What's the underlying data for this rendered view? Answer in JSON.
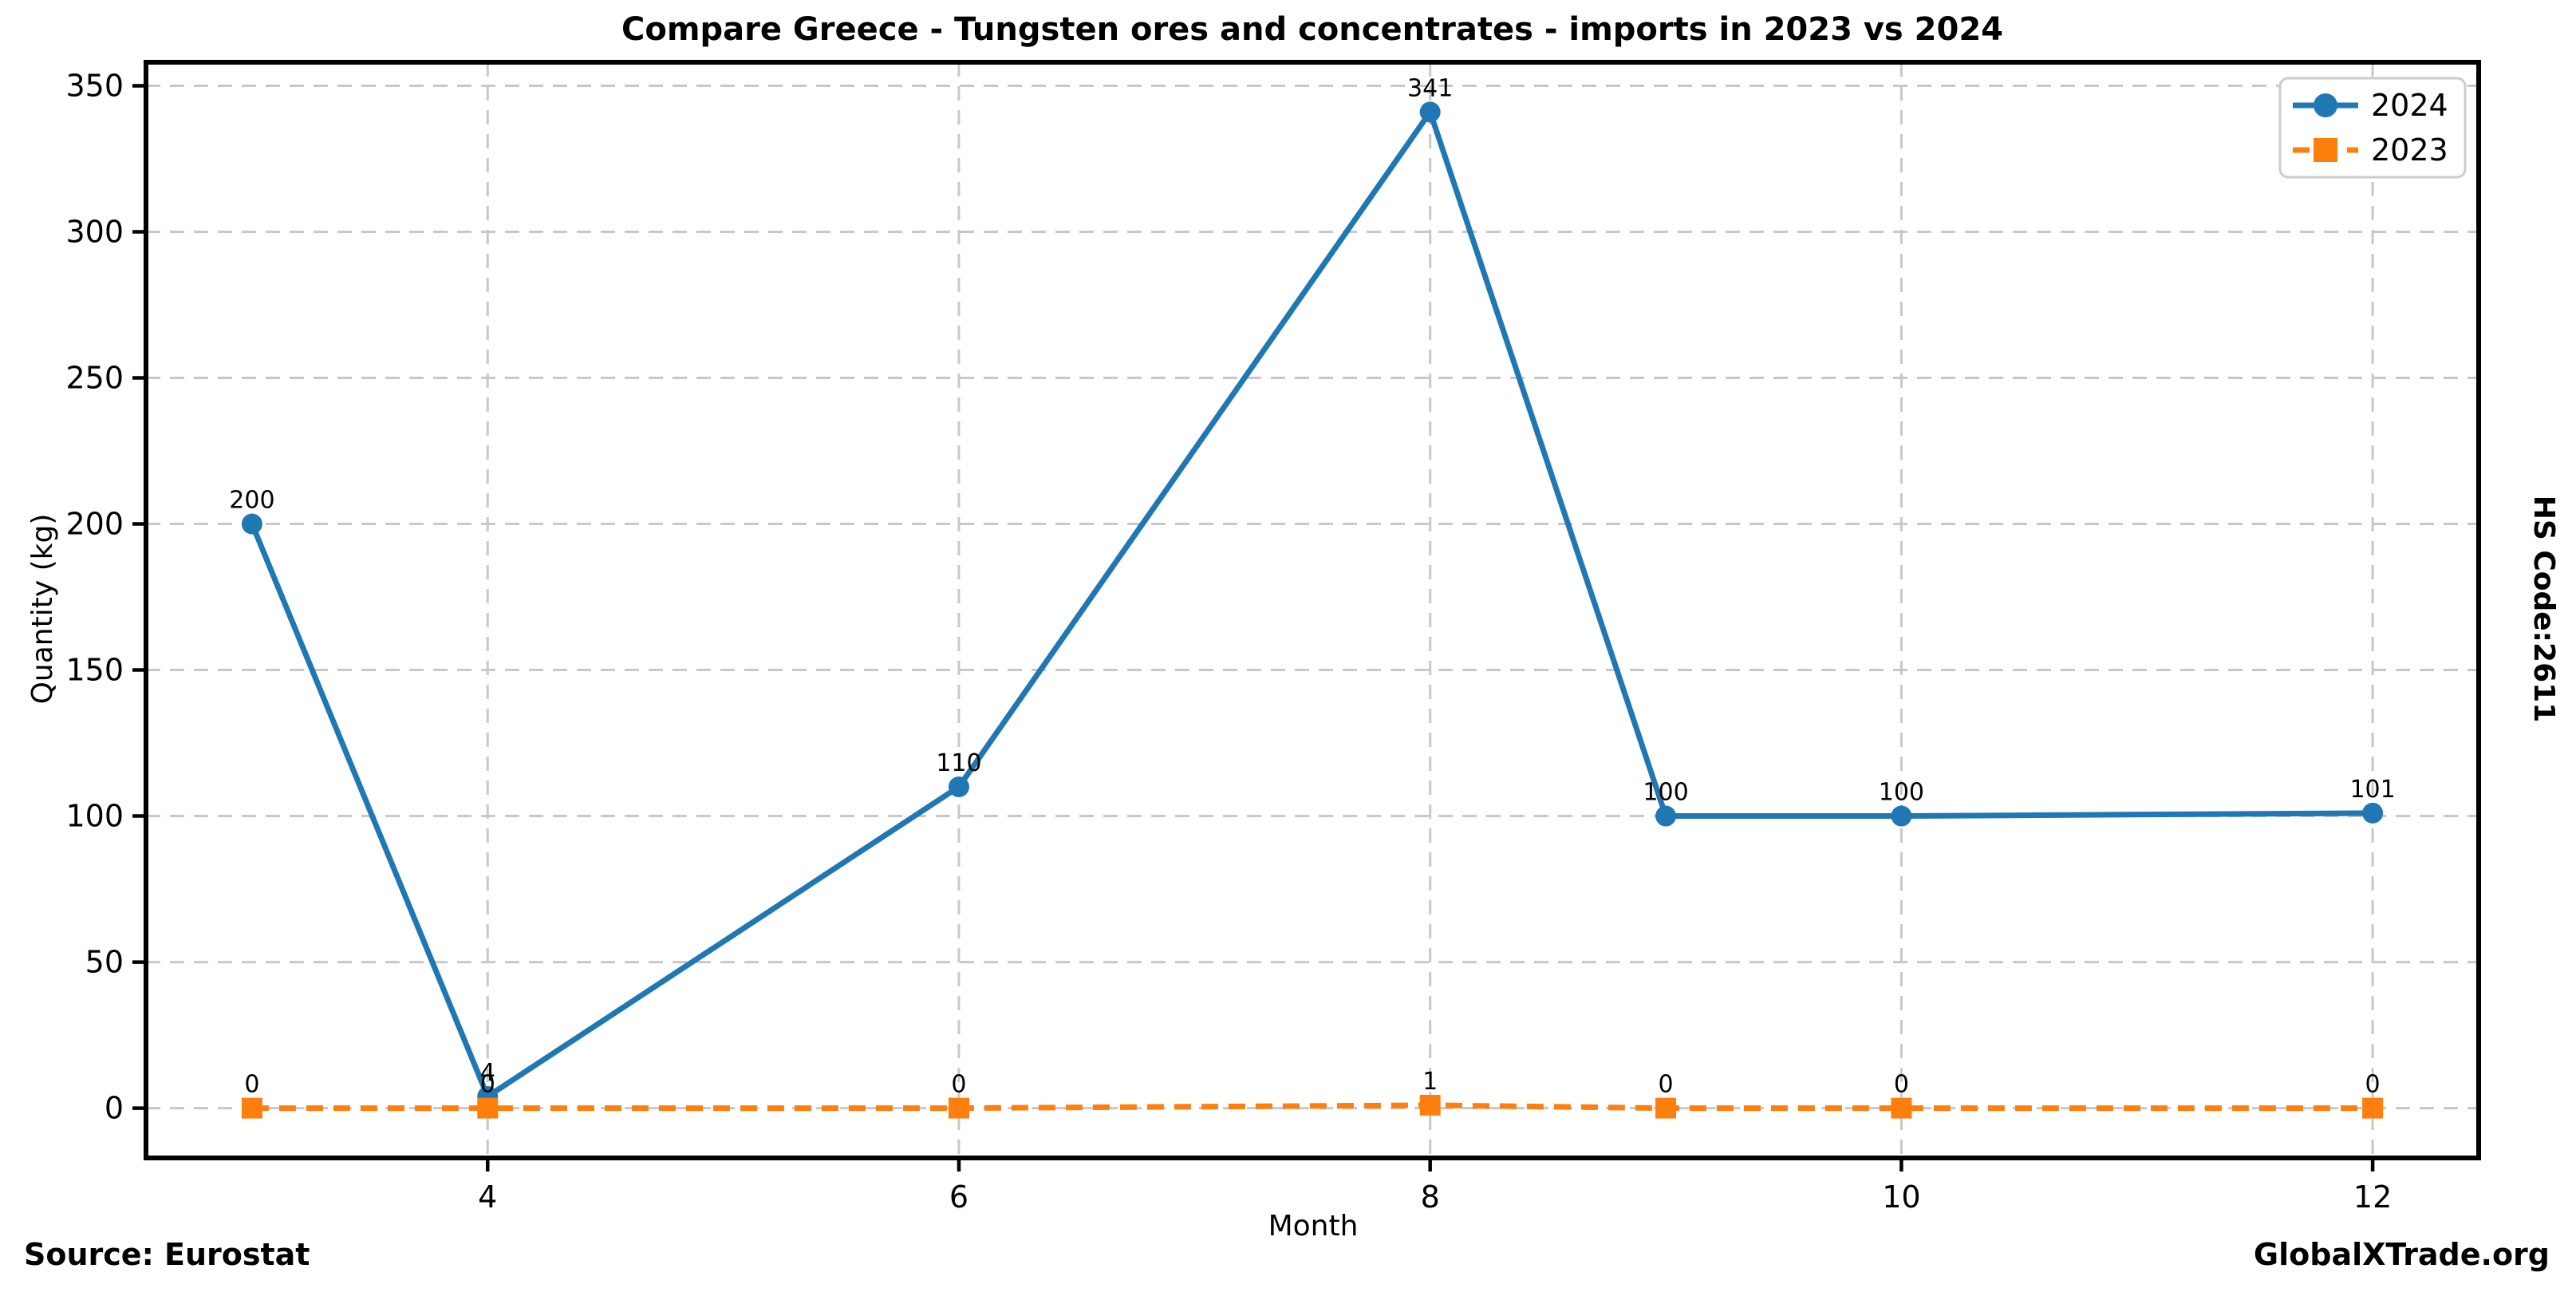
{
  "page": {
    "source": "Source: Eurostat",
    "brand": "GlobalXTrade.org",
    "hs_code": "HS Code:2611"
  },
  "chart_data": {
    "type": "line",
    "title": "Compare Greece - Tungsten ores and concentrates - imports in 2023 vs 2024",
    "xlabel": "Month",
    "ylabel": "Quantity (kg)",
    "x": [
      3,
      4,
      6,
      8,
      9,
      10,
      12
    ],
    "series": [
      {
        "name": "2024",
        "color": "#1f77b4",
        "marker": "circle",
        "line_style": "solid",
        "values": [
          200,
          4,
          110,
          341,
          100,
          100,
          101
        ]
      },
      {
        "name": "2023",
        "color": "#ff7f0e",
        "marker": "square",
        "line_style": "dashed",
        "values": [
          0,
          0,
          0,
          1,
          0,
          0,
          0
        ]
      }
    ],
    "xticks": [
      4,
      6,
      8,
      10,
      12
    ],
    "yticks": [
      0,
      50,
      100,
      150,
      200,
      250,
      300,
      350
    ],
    "xlim": [
      2.55,
      12.45
    ],
    "ylim": [
      -17.05,
      358.05
    ],
    "grid": true,
    "grid_color": "#c8c8c8",
    "axis_color": "#000000",
    "point_labels": true,
    "legend_position": "upper right"
  }
}
